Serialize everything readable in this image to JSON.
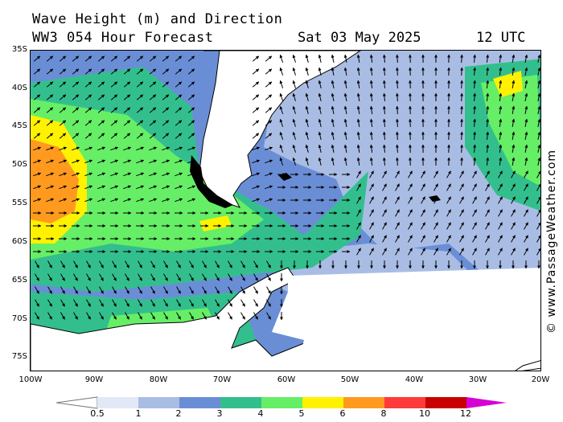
{
  "header": {
    "title": "Wave Height (m) and Direction",
    "model": "WW3 054 Hour Forecast",
    "valid_date": "Sat 03 May 2025",
    "valid_time": "12 UTC"
  },
  "watermark": "© www.PassageWeather.com",
  "axes": {
    "lat_labels": [
      "35S",
      "40S",
      "45S",
      "50S",
      "55S",
      "60S",
      "65S",
      "70S",
      "75S"
    ],
    "lon_labels": [
      "100W",
      "90W",
      "80W",
      "70W",
      "60W",
      "50W",
      "40W",
      "30W",
      "20W"
    ]
  },
  "legend": {
    "labels": [
      "0.5",
      "1",
      "2",
      "3",
      "4",
      "5",
      "6",
      "8",
      "10",
      "12"
    ],
    "colors": [
      "#e2e8f6",
      "#a9bde4",
      "#6a8ed6",
      "#33bf8d",
      "#66ee66",
      "#fff200",
      "#ff9a1f",
      "#ff3a3a",
      "#c80000",
      "#d600d6"
    ]
  },
  "colors": {
    "land": "#ffffff",
    "coast": "#000000"
  }
}
